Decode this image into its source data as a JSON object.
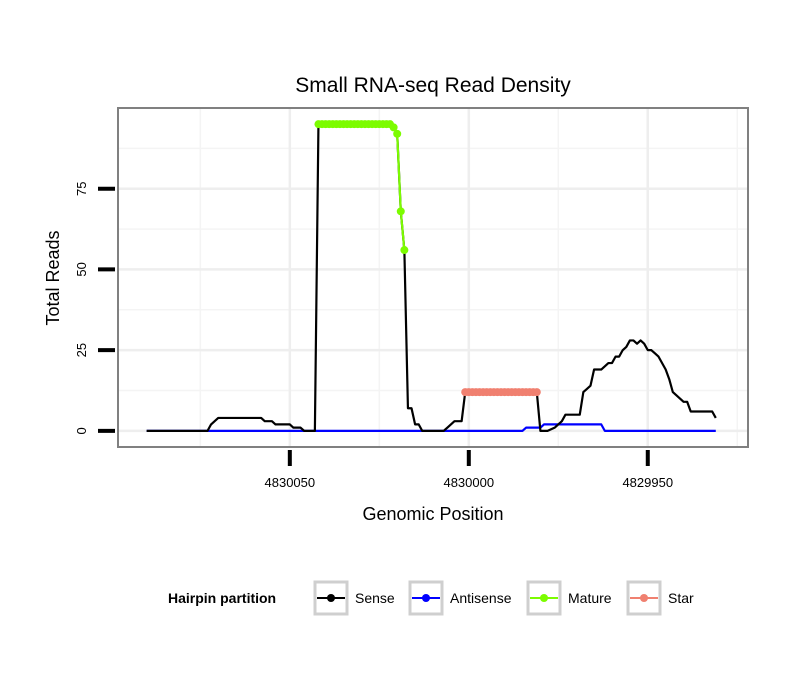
{
  "chart_data": {
    "type": "line",
    "title": "Small RNA-seq Read Density",
    "xlabel": "Genomic Position",
    "ylabel": "Total Reads",
    "xlim": [
      4830098,
      4829922
    ],
    "ylim": [
      -5,
      100
    ],
    "x_reversed": true,
    "grid": true,
    "x_ticks": [
      4830050,
      4830000,
      4829950
    ],
    "y_ticks": [
      0,
      25,
      50,
      75
    ],
    "x_tick_labels": [
      "4830050",
      "4830000",
      "4829950"
    ],
    "y_tick_labels": [
      "0",
      "25",
      "50",
      "75"
    ],
    "legend": {
      "title": "Hairpin partition",
      "placement": "bottom",
      "entries": [
        "Sense",
        "Antisense",
        "Mature",
        "Star"
      ]
    },
    "series": [
      {
        "name": "Sense",
        "color": "#000000",
        "points": [
          [
            4830090,
            0
          ],
          [
            4830073,
            0
          ],
          [
            4830072,
            2
          ],
          [
            4830071,
            3
          ],
          [
            4830070,
            4
          ],
          [
            4830058,
            4
          ],
          [
            4830057,
            3
          ],
          [
            4830055,
            3
          ],
          [
            4830054,
            2
          ],
          [
            4830050,
            2
          ],
          [
            4830049,
            1
          ],
          [
            4830047,
            1
          ],
          [
            4830046,
            0
          ],
          [
            4830043,
            0
          ],
          [
            4830042,
            95
          ],
          [
            4830022,
            95
          ],
          [
            4830021,
            94
          ],
          [
            4830020,
            92
          ],
          [
            4830019,
            68
          ],
          [
            4830018,
            56
          ],
          [
            4830017,
            7
          ],
          [
            4830016,
            7
          ],
          [
            4830015,
            2
          ],
          [
            4830014,
            2
          ],
          [
            4830013,
            0
          ],
          [
            4830007,
            0
          ],
          [
            4830006,
            1
          ],
          [
            4830004,
            3
          ],
          [
            4830002,
            3
          ],
          [
            4830001,
            12
          ],
          [
            4829981,
            12
          ],
          [
            4829980,
            0
          ],
          [
            4829978,
            0
          ],
          [
            4829976,
            1
          ],
          [
            4829974,
            3
          ],
          [
            4829973,
            5
          ],
          [
            4829969,
            5
          ],
          [
            4829968,
            12
          ],
          [
            4829967,
            13
          ],
          [
            4829966,
            14
          ],
          [
            4829965,
            19
          ],
          [
            4829963,
            19
          ],
          [
            4829962,
            20
          ],
          [
            4829961,
            21
          ],
          [
            4829960,
            21
          ],
          [
            4829959,
            23
          ],
          [
            4829958,
            23
          ],
          [
            4829957,
            25
          ],
          [
            4829956,
            26
          ],
          [
            4829955,
            28
          ],
          [
            4829954,
            28
          ],
          [
            4829953,
            27
          ],
          [
            4829952,
            28
          ],
          [
            4829951,
            27
          ],
          [
            4829950,
            25
          ],
          [
            4829949,
            25
          ],
          [
            4829948,
            24
          ],
          [
            4829947,
            23
          ],
          [
            4829945,
            19
          ],
          [
            4829944,
            16
          ],
          [
            4829943,
            12
          ],
          [
            4829942,
            11
          ],
          [
            4829941,
            10
          ],
          [
            4829940,
            9
          ],
          [
            4829939,
            9
          ],
          [
            4829938,
            6
          ],
          [
            4829932,
            6
          ],
          [
            4829931,
            4
          ]
        ]
      },
      {
        "name": "Antisense",
        "color": "#0000ff",
        "points": [
          [
            4830090,
            0
          ],
          [
            4829985,
            0
          ],
          [
            4829984,
            1
          ],
          [
            4829980,
            1
          ],
          [
            4829979,
            2
          ],
          [
            4829963,
            2
          ],
          [
            4829962,
            0
          ],
          [
            4829931,
            0
          ]
        ]
      },
      {
        "name": "Mature",
        "color": "#7cfc00",
        "points": [
          [
            4830042,
            95
          ],
          [
            4830041,
            95
          ],
          [
            4830040,
            95
          ],
          [
            4830039,
            95
          ],
          [
            4830038,
            95
          ],
          [
            4830037,
            95
          ],
          [
            4830036,
            95
          ],
          [
            4830035,
            95
          ],
          [
            4830034,
            95
          ],
          [
            4830033,
            95
          ],
          [
            4830032,
            95
          ],
          [
            4830031,
            95
          ],
          [
            4830030,
            95
          ],
          [
            4830029,
            95
          ],
          [
            4830028,
            95
          ],
          [
            4830027,
            95
          ],
          [
            4830026,
            95
          ],
          [
            4830025,
            95
          ],
          [
            4830024,
            95
          ],
          [
            4830023,
            95
          ],
          [
            4830022,
            95
          ],
          [
            4830021,
            94
          ],
          [
            4830020,
            92
          ],
          [
            4830019,
            68
          ],
          [
            4830018,
            56
          ]
        ]
      },
      {
        "name": "Star",
        "color": "#f08070",
        "points": [
          [
            4830001,
            12
          ],
          [
            4830000,
            12
          ],
          [
            4829999,
            12
          ],
          [
            4829998,
            12
          ],
          [
            4829997,
            12
          ],
          [
            4829996,
            12
          ],
          [
            4829995,
            12
          ],
          [
            4829994,
            12
          ],
          [
            4829993,
            12
          ],
          [
            4829992,
            12
          ],
          [
            4829991,
            12
          ],
          [
            4829990,
            12
          ],
          [
            4829989,
            12
          ],
          [
            4829988,
            12
          ],
          [
            4829987,
            12
          ],
          [
            4829986,
            12
          ],
          [
            4829985,
            12
          ],
          [
            4829984,
            12
          ],
          [
            4829983,
            12
          ],
          [
            4829982,
            12
          ],
          [
            4829981,
            12
          ]
        ]
      }
    ]
  }
}
